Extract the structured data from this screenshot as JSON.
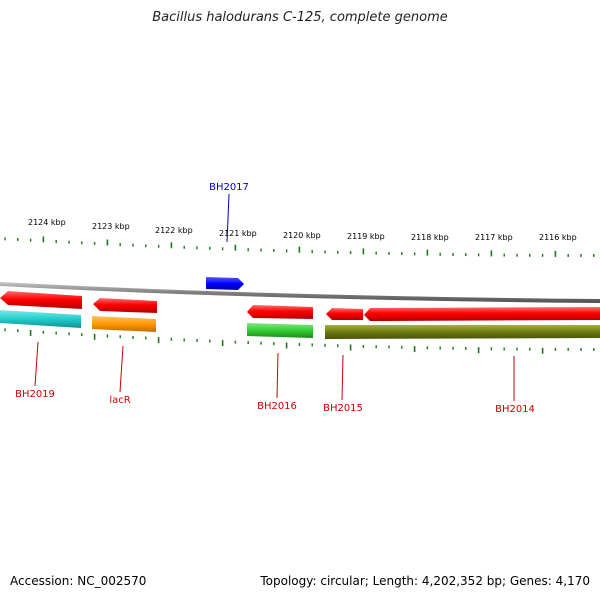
{
  "title": "Bacillus halodurans C-125, complete genome",
  "footer": {
    "accession": "Accession: NC_002570",
    "topology": "Topology: circular; Length: 4,202,352 bp; Genes: 4,170"
  },
  "ticks": [
    "2124 kbp",
    "2123 kbp",
    "2122 kbp",
    "2121 kbp",
    "2120 kbp",
    "2119 kbp",
    "2118 kbp",
    "2117 kbp",
    "2116 kbp"
  ],
  "genes": [
    {
      "label": "BH2017",
      "color": "#0000cc",
      "strand": "forward"
    },
    {
      "label": "BH2019",
      "color": "#cc0000",
      "strand": "reverse"
    },
    {
      "label": "lacR",
      "color": "#cc0000",
      "strand": "reverse"
    },
    {
      "label": "BH2016",
      "color": "#cc0000",
      "strand": "reverse"
    },
    {
      "label": "BH2015",
      "color": "#cc0000",
      "strand": "reverse"
    },
    {
      "label": "BH2014",
      "color": "#cc0000",
      "strand": "reverse"
    }
  ],
  "colors": {
    "cds": "#ff0000",
    "forward_cds": "#0000ff",
    "tick": "#1a7a1a",
    "backbone": "#808080",
    "cyan": "#22cccc",
    "orange": "#ff9900",
    "green": "#33cc33",
    "olive": "#6e7a10"
  }
}
